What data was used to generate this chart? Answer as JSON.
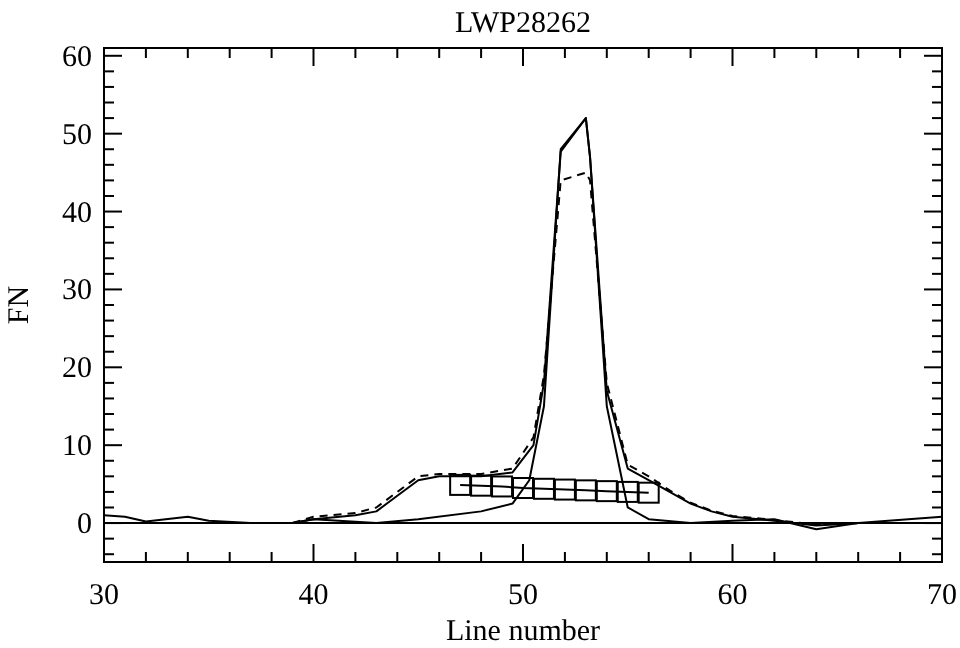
{
  "chart_data": {
    "type": "line",
    "title": "LWP28262",
    "xlabel": "Line number",
    "ylabel": "FN",
    "xlim": [
      30,
      70
    ],
    "ylim": [
      -5,
      61
    ],
    "xticks": [
      30,
      {
        "value": 32,
        "label": null
      },
      {
        "value": 34,
        "label": null
      },
      {
        "value": 36,
        "label": null
      },
      {
        "value": 38,
        "label": null
      },
      40,
      {
        "value": 42,
        "label": null
      },
      {
        "value": 44,
        "label": null
      },
      {
        "value": 46,
        "label": null
      },
      {
        "value": 48,
        "label": null
      },
      50,
      {
        "value": 52,
        "label": null
      },
      {
        "value": 54,
        "label": null
      },
      {
        "value": 56,
        "label": null
      },
      {
        "value": 58,
        "label": null
      },
      60,
      {
        "value": 62,
        "label": null
      },
      {
        "value": 64,
        "label": null
      },
      {
        "value": 66,
        "label": null
      },
      {
        "value": 68,
        "label": null
      },
      70
    ],
    "yticks": [
      {
        "value": -4,
        "label": null
      },
      {
        "value": -2,
        "label": null
      },
      0,
      {
        "value": 2,
        "label": null
      },
      {
        "value": 4,
        "label": null
      },
      {
        "value": 6,
        "label": null
      },
      {
        "value": 8,
        "label": null
      },
      10,
      {
        "value": 12,
        "label": null
      },
      {
        "value": 14,
        "label": null
      },
      {
        "value": 16,
        "label": null
      },
      {
        "value": 18,
        "label": null
      },
      20,
      {
        "value": 22,
        "label": null
      },
      {
        "value": 24,
        "label": null
      },
      {
        "value": 26,
        "label": null
      },
      {
        "value": 28,
        "label": null
      },
      30,
      {
        "value": 32,
        "label": null
      },
      {
        "value": 34,
        "label": null
      },
      {
        "value": 36,
        "label": null
      },
      {
        "value": 38,
        "label": null
      },
      40,
      {
        "value": 42,
        "label": null
      },
      {
        "value": 44,
        "label": null
      },
      {
        "value": 46,
        "label": null
      },
      {
        "value": 48,
        "label": null
      },
      50,
      {
        "value": 52,
        "label": null
      },
      {
        "value": 54,
        "label": null
      },
      {
        "value": 56,
        "label": null
      },
      {
        "value": 58,
        "label": null
      },
      60
    ],
    "grid": false,
    "ref_lines": [
      {
        "axis": "y",
        "value": 0,
        "color": "#000000"
      }
    ],
    "series": [
      {
        "color": "#000000",
        "line_style": "solid",
        "marker": "none",
        "x": [
          39,
          40,
          42,
          43,
          44,
          45,
          46,
          48,
          49.5,
          50.5,
          51,
          51.8,
          53,
          53.2,
          54,
          55,
          56,
          57,
          58,
          59,
          60,
          62,
          64,
          66,
          70
        ],
        "values": [
          0,
          0.5,
          1,
          1.5,
          3.5,
          5.5,
          6,
          6,
          6.5,
          10,
          18,
          47.7,
          52,
          47,
          17,
          7,
          5.5,
          4,
          2.5,
          1.5,
          0.8,
          0.3,
          -0.3,
          0,
          0
        ]
      },
      {
        "color": "#000000",
        "line_style": "dashed",
        "marker": "none",
        "x": [
          39,
          40,
          42,
          43,
          44,
          45,
          46,
          48,
          49.5,
          50.5,
          51,
          51.8,
          53,
          53.2,
          54,
          55,
          56,
          57,
          58,
          59,
          60,
          62,
          64,
          66,
          70
        ],
        "values": [
          0,
          0.8,
          1.3,
          2,
          4,
          6,
          6.3,
          6.3,
          7,
          11,
          19,
          44,
          45,
          44,
          18,
          7.5,
          6,
          4.2,
          2.6,
          1.6,
          0.9,
          0.4,
          -0.2,
          0,
          0
        ]
      },
      {
        "color": "#000000",
        "line_style": "solid",
        "marker": "none",
        "x": [
          30,
          31,
          32,
          34,
          35,
          37,
          39,
          40,
          43,
          45,
          48,
          49.5,
          50.3,
          51,
          51.8,
          53,
          53.2,
          54,
          55,
          56,
          58,
          60,
          62,
          64,
          66,
          70
        ],
        "values": [
          1,
          0.8,
          0.2,
          0.8,
          0.3,
          0,
          0,
          0.5,
          0,
          0.5,
          1.5,
          2.5,
          5.5,
          15,
          48,
          52,
          47,
          15,
          2,
          0.5,
          0,
          0.3,
          0.5,
          -0.8,
          0,
          0.8
        ]
      },
      {
        "color": "#000000",
        "line_style": "solid",
        "marker": "square",
        "x": [
          47,
          48,
          49,
          50,
          51,
          52,
          53,
          54,
          55,
          56
        ],
        "values": [
          4.9,
          4.8,
          4.7,
          4.5,
          4.4,
          4.3,
          4.2,
          4.1,
          4,
          3.9
        ]
      }
    ]
  }
}
